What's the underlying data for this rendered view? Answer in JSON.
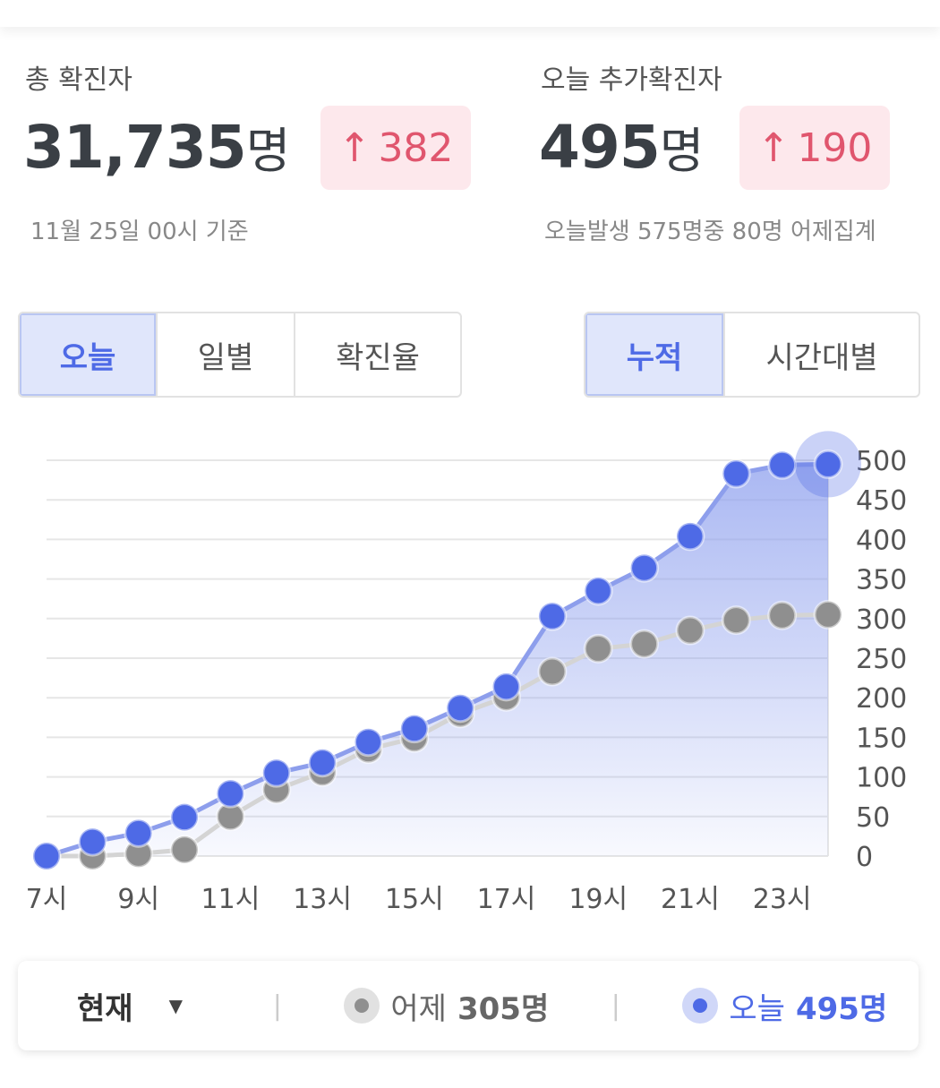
{
  "stats": [
    {
      "label": "총 확진자",
      "value": "31,735",
      "unit": "명",
      "change": "382",
      "note": "11월 25일 00시 기준"
    },
    {
      "label": "오늘 추가확진자",
      "value": "495",
      "unit": "명",
      "change": "190",
      "note": "오늘발생 575명중 80명 어제집계"
    }
  ],
  "tabs_left": [
    "오늘",
    "일별",
    "확진율"
  ],
  "tabs_right": [
    "누적",
    "시간대별"
  ],
  "dropdown": "현재",
  "chart_data": {
    "type": "line",
    "categories": [
      "7시",
      null,
      "9시",
      null,
      "11시",
      null,
      "13시",
      null,
      "15시",
      null,
      "17시",
      null,
      "19시",
      null,
      "21시",
      null,
      "23시",
      null
    ],
    "series": [
      {
        "name": "어제",
        "total_label": "305명",
        "color": "#8f8f8f",
        "values": [
          0,
          0,
          3,
          8,
          50,
          84,
          106,
          135,
          149,
          180,
          201,
          233,
          262,
          268,
          285,
          298,
          304,
          305
        ]
      },
      {
        "name": "오늘",
        "total_label": "495명",
        "color": "#4e6ae6",
        "values": [
          0,
          18,
          29,
          49,
          79,
          105,
          118,
          144,
          161,
          187,
          214,
          303,
          335,
          364,
          404,
          483,
          494,
          495
        ]
      }
    ],
    "ylim": [
      0,
      500
    ],
    "yticks": [
      0,
      50,
      100,
      150,
      200,
      250,
      300,
      350,
      400,
      450,
      500
    ],
    "grid": true
  }
}
